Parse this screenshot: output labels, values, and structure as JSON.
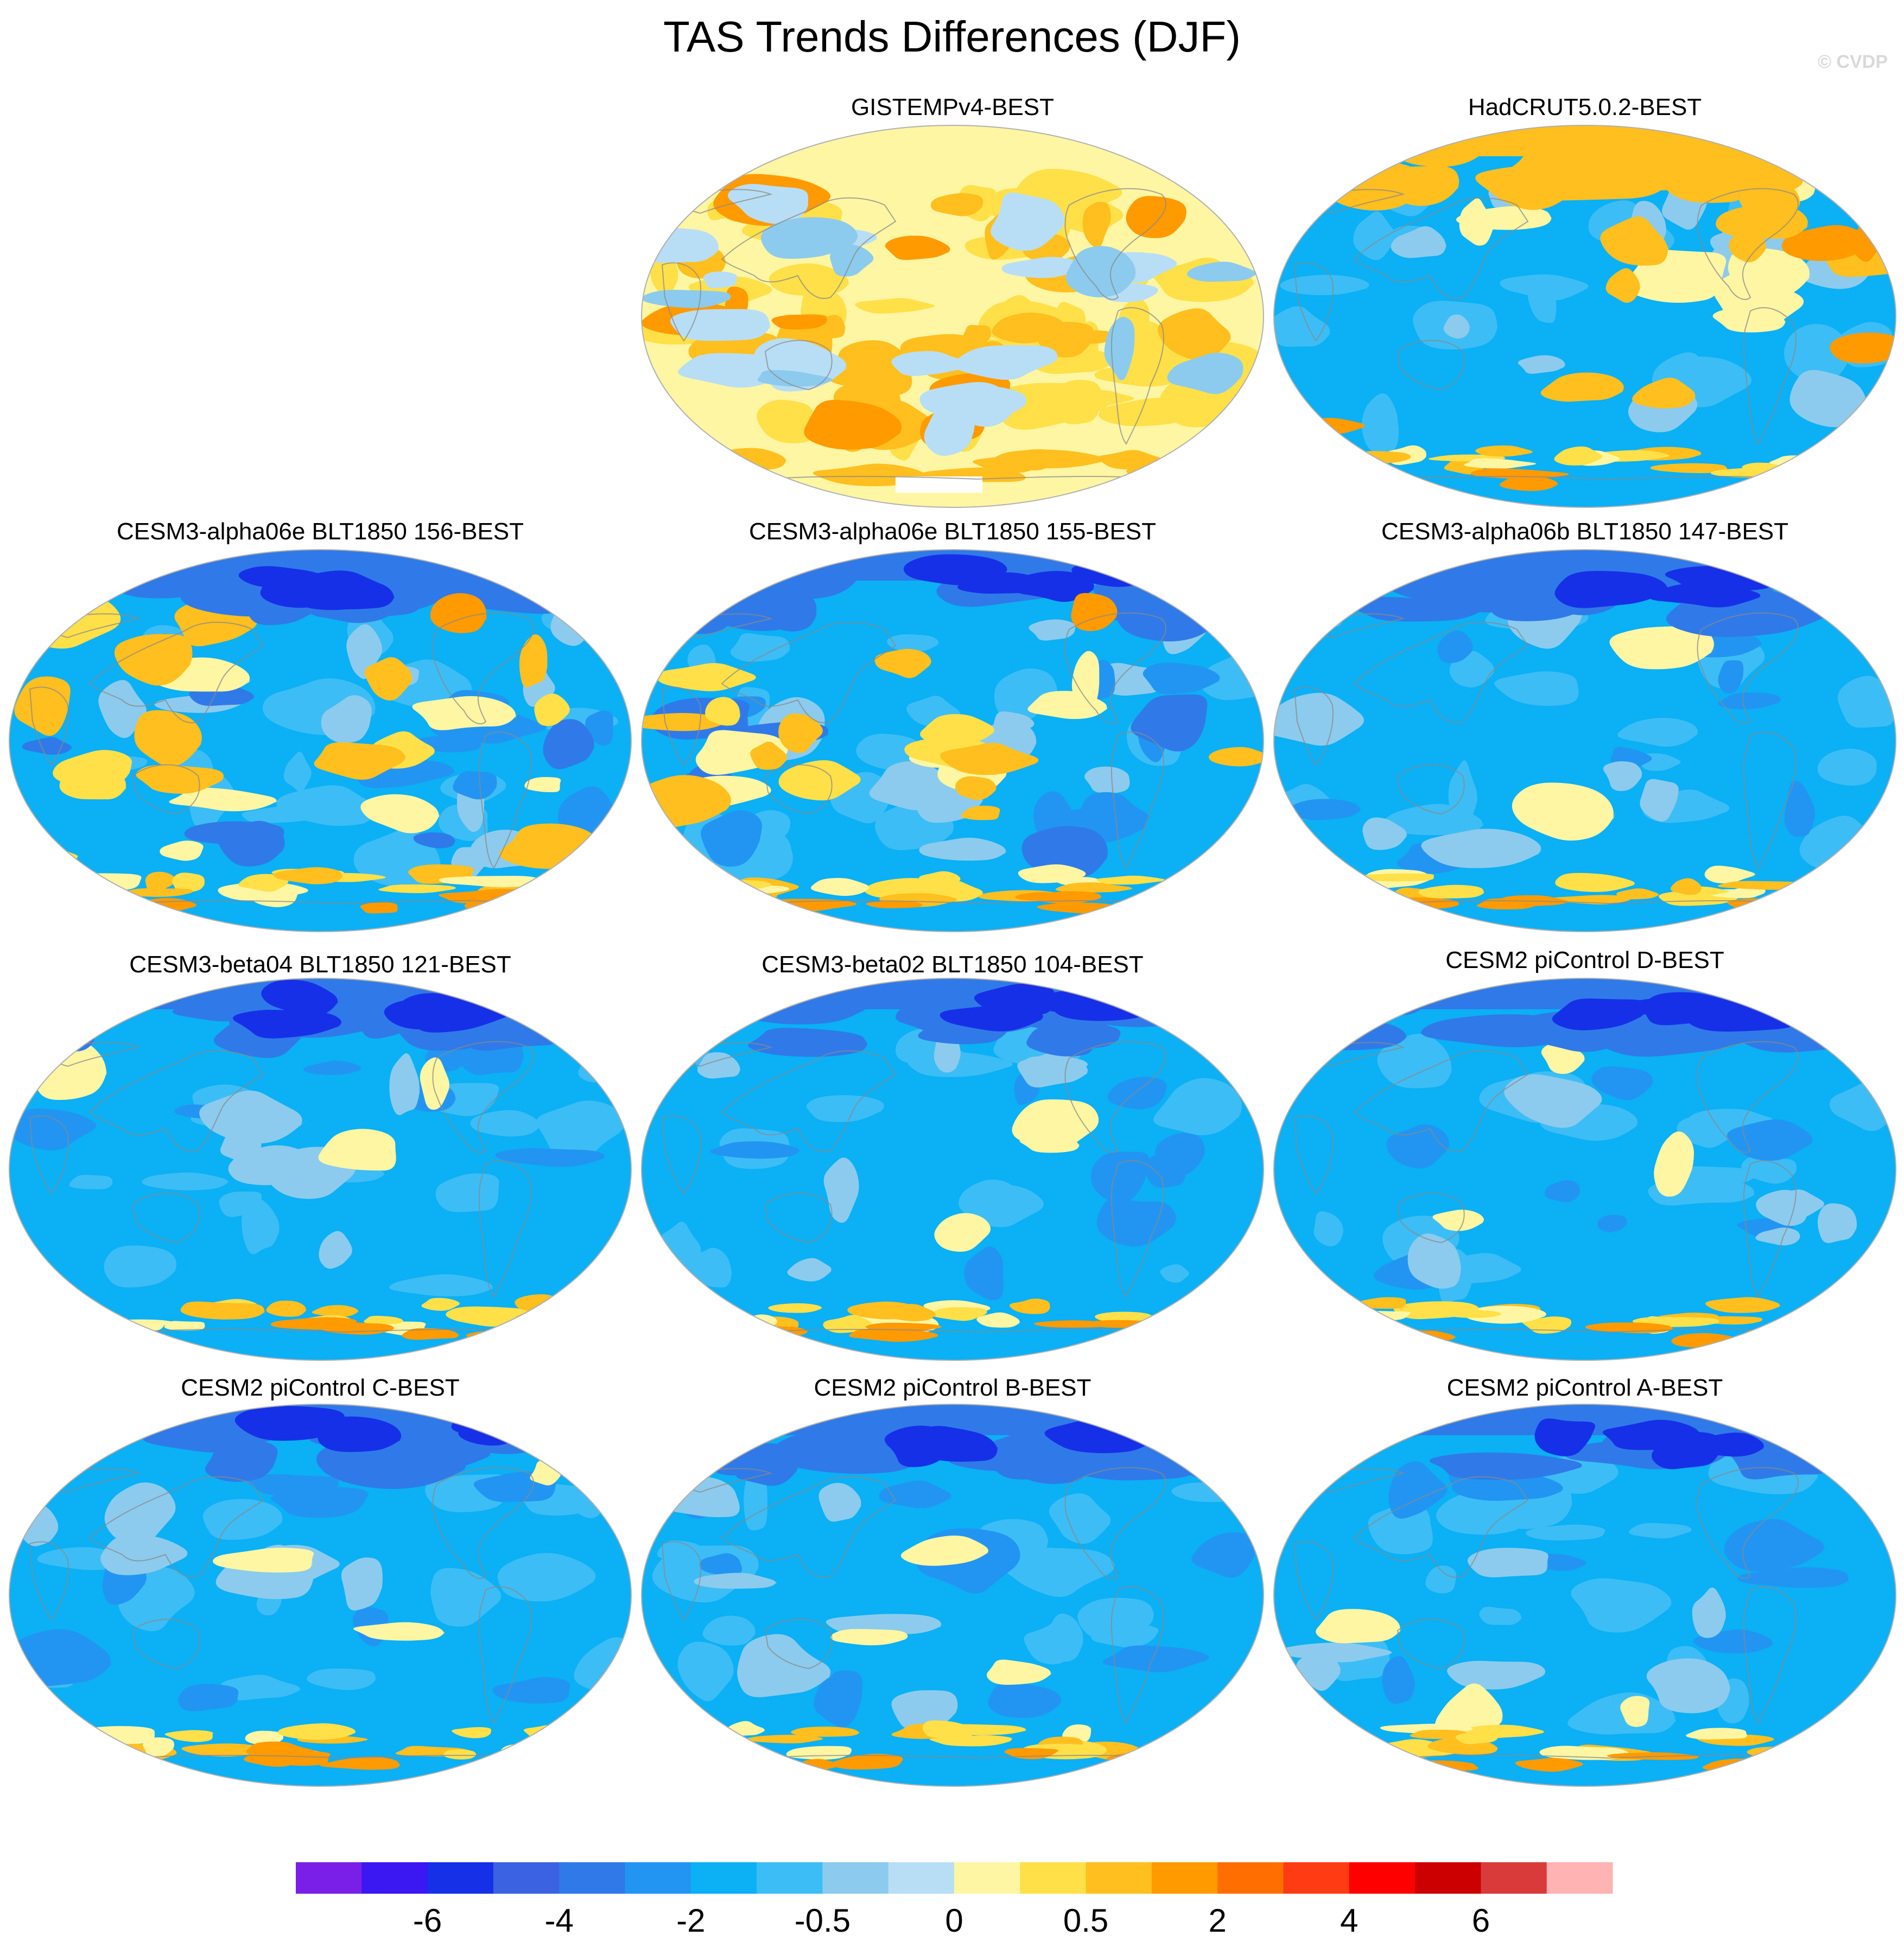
{
  "title": "TAS Trends Differences (DJF)",
  "credit": "© CVDP",
  "colors": {
    "palette": [
      "#7a1fe8",
      "#3b17f2",
      "#1630e8",
      "#3b62e0",
      "#2f7ae8",
      "#2295f2",
      "#0bb0f5",
      "#3dbdf5",
      "#8ccbed",
      "#b8def5",
      "#fff6a3",
      "#ffe049",
      "#ffbf1f",
      "#ff9a00",
      "#ff6e00",
      "#ff3b14",
      "#ff0000",
      "#cc0000",
      "#d93b3b",
      "#ffb3b3"
    ],
    "land_outline": "#8a8a8a",
    "missing": "#ffffff"
  },
  "chart_data": {
    "type": "heatmap",
    "projection": "Robinson (Pacific-centered, approx.)",
    "colorbar": {
      "levels": [
        -8,
        -6,
        -5,
        -4,
        -3,
        -2,
        -1,
        -0.5,
        -0.25,
        0,
        0.25,
        0.5,
        1,
        2,
        3,
        4,
        5,
        6,
        8
      ],
      "tick_labels": [
        "-6",
        "-4",
        "-2",
        "-0.5",
        "0",
        "0.5",
        "2",
        "4",
        "6"
      ]
    },
    "panels": [
      {
        "label": "GISTEMPv4-BEST",
        "style": "obs_warm"
      },
      {
        "label": "HadCRUT5.0.2-BEST",
        "style": "obs_cool"
      },
      {
        "label": "CESM3-alpha06e BLT1850 156-BEST",
        "style": "model_a"
      },
      {
        "label": "CESM3-alpha06e BLT1850 155-BEST",
        "style": "model_b"
      },
      {
        "label": "CESM3-alpha06b BLT1850 147-BEST",
        "style": "model_cold"
      },
      {
        "label": "CESM3-beta04 BLT1850 121-BEST",
        "style": "model_cold"
      },
      {
        "label": "CESM3-beta02 BLT1850 104-BEST",
        "style": "model_cold"
      },
      {
        "label": "CESM2 piControl D-BEST",
        "style": "model_cold"
      },
      {
        "label": "CESM2 piControl C-BEST",
        "style": "model_cold"
      },
      {
        "label": "CESM2 piControl B-BEST",
        "style": "model_cold"
      },
      {
        "label": "CESM2 piControl A-BEST",
        "style": "model_cold"
      }
    ]
  }
}
